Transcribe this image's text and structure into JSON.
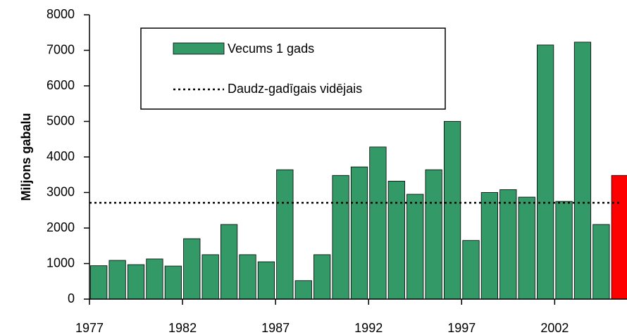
{
  "chart_data": {
    "type": "bar",
    "y_label": "Miljons gabalu",
    "x": [
      1977,
      1978,
      1979,
      1980,
      1981,
      1982,
      1983,
      1984,
      1985,
      1986,
      1987,
      1988,
      1989,
      1990,
      1991,
      1992,
      1993,
      1994,
      1995,
      1996,
      1997,
      1998,
      1999,
      2000,
      2001,
      2002,
      2003,
      2004,
      2005
    ],
    "series": [
      {
        "name": "Vecums 1 gads",
        "color": "#339966",
        "colors": [
          "#339966",
          "#339966",
          "#339966",
          "#339966",
          "#339966",
          "#339966",
          "#339966",
          "#339966",
          "#339966",
          "#339966",
          "#339966",
          "#339966",
          "#339966",
          "#339966",
          "#339966",
          "#339966",
          "#339966",
          "#339966",
          "#339966",
          "#339966",
          "#339966",
          "#339966",
          "#339966",
          "#339966",
          "#339966",
          "#339966",
          "#339966",
          "#339966",
          "#ff0000"
        ],
        "values": [
          940,
          1090,
          970,
          1130,
          930,
          1700,
          1250,
          2100,
          1250,
          1050,
          3640,
          520,
          1250,
          3480,
          3720,
          4280,
          3320,
          2950,
          3640,
          5000,
          1650,
          3000,
          3080,
          2870,
          7150,
          2750,
          7230,
          2100,
          3480
        ]
      }
    ],
    "average": {
      "name": "Daudz-gadīgais vidējais",
      "value": 2710
    },
    "xlim": [
      1977,
      2006
    ],
    "xticks": [
      1977,
      1982,
      1987,
      1992,
      1997,
      2002
    ],
    "ylim": [
      0,
      8000
    ],
    "yticks": [
      0,
      1000,
      2000,
      3000,
      4000,
      5000,
      6000,
      7000,
      8000
    ]
  }
}
